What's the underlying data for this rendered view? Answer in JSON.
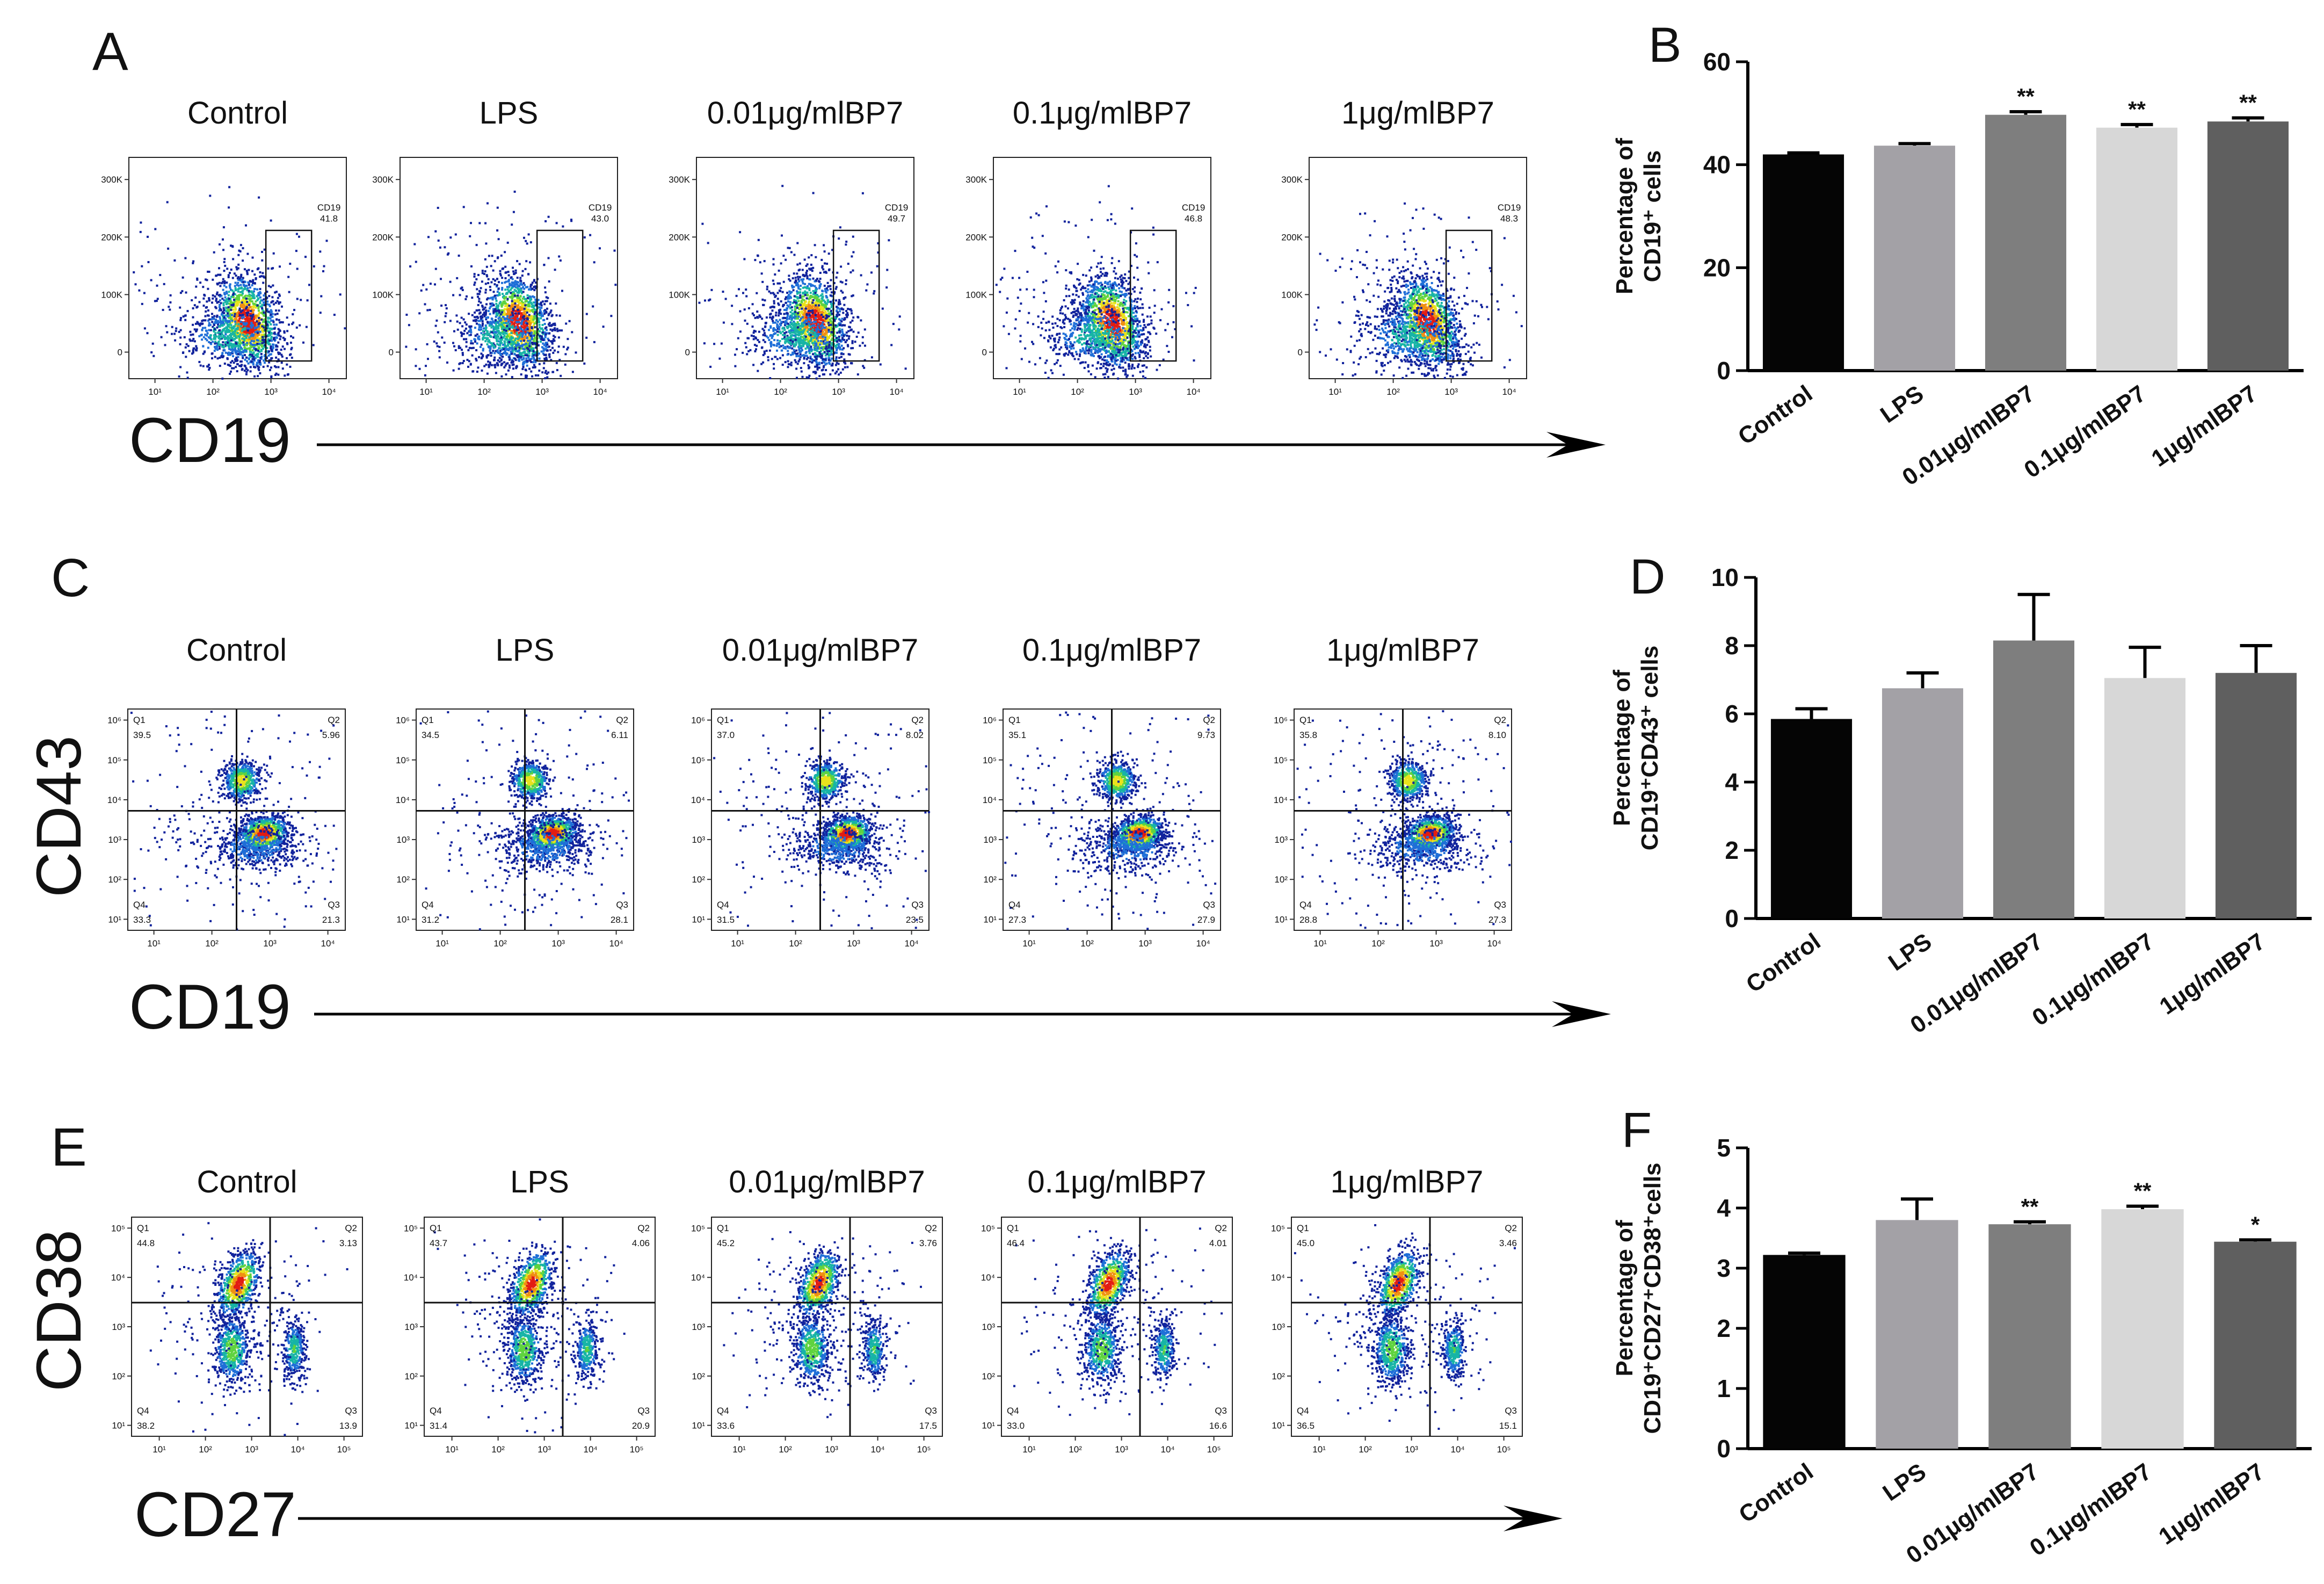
{
  "panels": {
    "A": {
      "letter": "A",
      "groups": [
        "Control",
        "LPS",
        "0.01μg/mlBP7",
        "0.1μg/mlBP7",
        "1μg/mlBP7"
      ],
      "gate_label": "CD19",
      "values": [
        "41.8",
        "43.0",
        "49.7",
        "46.8",
        "48.3"
      ],
      "x_axis_title": "CD19",
      "y_ticks": [
        "300K",
        "200K",
        "100K",
        "0"
      ],
      "x_ticks": [
        "10¹",
        "10²",
        "10³",
        "10⁴"
      ]
    },
    "C": {
      "letter": "C",
      "groups": [
        "Control",
        "LPS",
        "0.01μg/mlBP7",
        "0.1μg/mlBP7",
        "1μg/mlBP7"
      ],
      "quadrants": [
        {
          "Q1": "39.5",
          "Q2": "5.96",
          "Q3": "21.3",
          "Q4": "33.3"
        },
        {
          "Q1": "34.5",
          "Q2": "6.11",
          "Q3": "28.1",
          "Q4": "31.2"
        },
        {
          "Q1": "37.0",
          "Q2": "8.02",
          "Q3": "23.5",
          "Q4": "31.5"
        },
        {
          "Q1": "35.1",
          "Q2": "9.73",
          "Q3": "27.9",
          "Q4": "27.3"
        },
        {
          "Q1": "35.8",
          "Q2": "8.10",
          "Q3": "27.3",
          "Q4": "28.8"
        }
      ],
      "x_axis_title": "CD19",
      "y_axis_title": "CD43",
      "y_ticks": [
        "10⁶",
        "10⁵",
        "10⁴",
        "10³",
        "10²",
        "10¹"
      ],
      "x_ticks": [
        "10¹",
        "10²",
        "10³",
        "10⁴"
      ]
    },
    "E": {
      "letter": "E",
      "groups": [
        "Control",
        "LPS",
        "0.01μg/mlBP7",
        "0.1μg/mlBP7",
        "1μg/mlBP7"
      ],
      "quadrants": [
        {
          "Q1": "44.8",
          "Q2": "3.13",
          "Q3": "13.9",
          "Q4": "38.2"
        },
        {
          "Q1": "43.7",
          "Q2": "4.06",
          "Q3": "20.9",
          "Q4": "31.4"
        },
        {
          "Q1": "45.2",
          "Q2": "3.76",
          "Q3": "17.5",
          "Q4": "33.6"
        },
        {
          "Q1": "46.4",
          "Q2": "4.01",
          "Q3": "16.6",
          "Q4": "33.0"
        },
        {
          "Q1": "45.0",
          "Q2": "3.46",
          "Q3": "15.1",
          "Q4": "36.5"
        }
      ],
      "x_axis_title": "CD27",
      "y_axis_title": "CD38",
      "y_ticks": [
        "10⁵",
        "10⁴",
        "10³",
        "10²",
        "10¹"
      ],
      "x_ticks": [
        "10¹",
        "10²",
        "10³",
        "10⁴",
        "10⁵"
      ]
    }
  },
  "chart_data": [
    {
      "letter": "B",
      "type": "bar",
      "categories": [
        "Control",
        "LPS",
        "0.01μg/mlBP7",
        "0.1μg/mlBP7",
        "1μg/mlBP7"
      ],
      "values": [
        42,
        43.7,
        49.7,
        47.2,
        48.4
      ],
      "errors": [
        0.3,
        0.4,
        0.6,
        0.6,
        0.7
      ],
      "significance": [
        "",
        "",
        "**",
        "**",
        "**"
      ],
      "ylim": [
        0,
        60
      ],
      "yticks": [
        0,
        20,
        40,
        60
      ],
      "ylabel_line1": "Percentage of",
      "ylabel_line2": "CD19⁺ cells",
      "colors": [
        "#050505",
        "#a3a1a6",
        "#7e7e7e",
        "#d7d7d7",
        "#5f5f5f"
      ]
    },
    {
      "letter": "D",
      "type": "bar",
      "categories": [
        "Control",
        "LPS",
        "0.01μg/mlBP7",
        "0.1μg/mlBP7",
        "1μg/mlBP7"
      ],
      "values": [
        5.85,
        6.75,
        8.15,
        7.05,
        7.2
      ],
      "errors": [
        0.3,
        0.45,
        1.35,
        0.9,
        0.8
      ],
      "significance": [
        "",
        "",
        "",
        "",
        ""
      ],
      "ylim": [
        0,
        10
      ],
      "yticks": [
        0,
        2,
        4,
        6,
        8,
        10
      ],
      "ylabel_line1": "Percentage of",
      "ylabel_line2": "CD19⁺CD43⁺ cells",
      "colors": [
        "#050505",
        "#a3a1a6",
        "#7e7e7e",
        "#d7d7d7",
        "#5f5f5f"
      ]
    },
    {
      "letter": "F",
      "type": "bar",
      "categories": [
        "Control",
        "LPS",
        "0.01μg/mlBP7",
        "0.1μg/mlBP7",
        "1μg/mlBP7"
      ],
      "values": [
        3.22,
        3.8,
        3.73,
        3.98,
        3.44
      ],
      "errors": [
        0.03,
        0.35,
        0.04,
        0.05,
        0.03
      ],
      "significance": [
        "",
        "",
        "**",
        "**",
        "*"
      ],
      "ylim": [
        0,
        5
      ],
      "yticks": [
        0,
        1,
        2,
        3,
        4,
        5
      ],
      "ylabel_line1": "Percentage of",
      "ylabel_line2": "CD19⁺CD27⁺CD38⁺cells",
      "colors": [
        "#050505",
        "#a3a1a6",
        "#7e7e7e",
        "#d7d7d7",
        "#5f5f5f"
      ]
    }
  ]
}
